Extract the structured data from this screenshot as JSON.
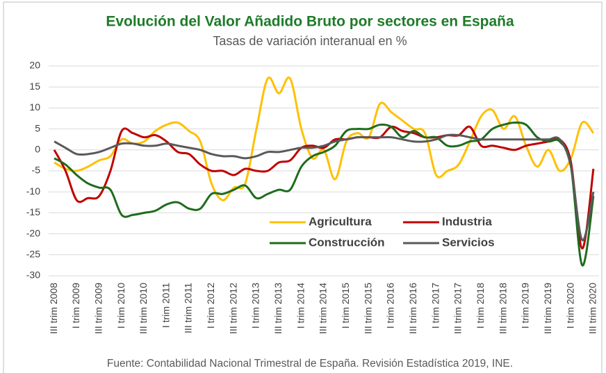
{
  "chart_data": {
    "type": "line",
    "title": "Evolución del Valor Añadido Bruto por sectores en España",
    "subtitle": "Tasas de variación interanual en %",
    "source": "Fuente: Contabilidad Nacional Trimestral de España. Revisión Estadística 2019, INE.",
    "categories": [
      "III trim 2008",
      null,
      "I trim 2009",
      null,
      "III trim 2009",
      null,
      "I trim 2010",
      null,
      "III trim 2010",
      null,
      "I trim 2011",
      null,
      "III trim 2011",
      null,
      "I trim 2012",
      null,
      "III trim 2012",
      null,
      "I trim 2013",
      null,
      "III trim 2013",
      null,
      "I trim 2014",
      null,
      "III trim 2014",
      null,
      "I trim 2015",
      null,
      "III trim 2015",
      null,
      "I trim 2016",
      null,
      "III trim 2016",
      null,
      "I trim 2017",
      null,
      "III trim 2017",
      null,
      "I trim 2018",
      null,
      "III trim 2018",
      null,
      "I trim 2019",
      null,
      "III trim 2019",
      null,
      "I trim 2020",
      null,
      "III trim 2020"
    ],
    "series": [
      {
        "name": "Agricultura",
        "color": "#FFC000",
        "values": [
          -3,
          -4.5,
          -5,
          -4,
          -2.5,
          -1.5,
          2.5,
          1.5,
          2,
          4.5,
          6,
          6.5,
          4.5,
          2,
          -8,
          -12,
          -9,
          -8,
          5,
          17,
          13.5,
          17,
          5,
          -2,
          0,
          -7,
          2,
          4,
          3,
          11,
          9,
          7,
          5,
          4,
          -6,
          -5,
          -3.5,
          2,
          8,
          9.5,
          5,
          8,
          1,
          -4,
          0,
          -5,
          -2,
          6.5,
          4
        ]
      },
      {
        "name": "Industria",
        "color": "#C00000",
        "values": [
          0,
          -5,
          -12,
          -11.5,
          -11,
          -5,
          4.5,
          4,
          3,
          3.5,
          2,
          -0.5,
          -1,
          -3.5,
          -5,
          -5,
          -6,
          -4.5,
          -5,
          -5,
          -3,
          -2.5,
          0.5,
          1,
          0.5,
          2.5,
          2.5,
          3,
          3,
          3,
          5.5,
          4.5,
          4,
          3,
          3,
          3.5,
          3.5,
          5.5,
          1,
          1,
          0.5,
          0,
          1,
          1.5,
          2,
          2.5,
          -3,
          -23.5,
          -4.5
        ]
      },
      {
        "name": "Construcción",
        "color": "#1E6B1E",
        "values": [
          -2,
          -3.5,
          -6,
          -8,
          -9,
          -9.5,
          -15.5,
          -15.5,
          -15,
          -14.5,
          -13,
          -12.5,
          -14,
          -14,
          -10.5,
          -10.5,
          -9.5,
          -8.5,
          -11.5,
          -10.5,
          -9.5,
          -9.5,
          -4,
          -1.5,
          -0.5,
          1,
          4.5,
          5,
          5,
          6,
          5.5,
          3,
          4.5,
          3,
          3,
          1,
          1,
          2,
          2.5,
          5,
          6,
          6.5,
          6,
          3,
          2,
          2,
          -4,
          -27.5,
          -11
        ]
      },
      {
        "name": "Servicios",
        "color": "#595959",
        "values": [
          2,
          0.5,
          -1,
          -1,
          -0.5,
          0.5,
          1.5,
          1.5,
          1,
          1,
          1.5,
          1,
          0.5,
          0,
          -1,
          -1.5,
          -1.5,
          -2,
          -1.5,
          -0.5,
          -0.5,
          0,
          0.5,
          0.5,
          1,
          2,
          2.5,
          3,
          3,
          3,
          3,
          2.5,
          2,
          2,
          2.5,
          3.5,
          3.5,
          3,
          2.5,
          2.5,
          2.5,
          2.5,
          2.5,
          2.5,
          2.5,
          2.5,
          -4,
          -21.5,
          -10
        ]
      }
    ],
    "ylim": [
      -30,
      20
    ],
    "yticks": [
      -30,
      -25,
      -20,
      -15,
      -10,
      -5,
      0,
      5,
      10,
      15,
      20
    ],
    "grid": true
  }
}
